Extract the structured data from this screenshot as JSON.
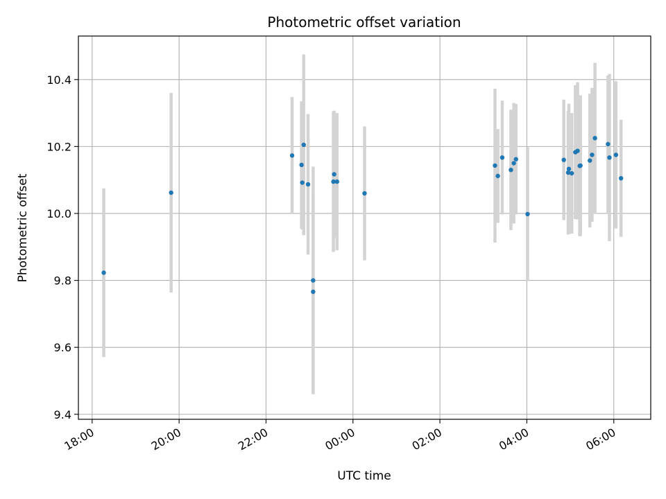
{
  "chart_data": {
    "type": "scatter",
    "title": "Photometric offset variation",
    "xlabel": "UTC time",
    "ylabel": "Photometric offset",
    "xlim": [
      "17:41",
      "06:51"
    ],
    "ylim": [
      9.385,
      10.53
    ],
    "xticks": [
      "18:00",
      "20:00",
      "22:00",
      "00:00",
      "02:00",
      "04:00",
      "06:00"
    ],
    "xtick_times": [
      "18:00",
      "20:00",
      "22:00",
      "24:00",
      "26:00",
      "28:00",
      "30:00"
    ],
    "yticks": [
      9.4,
      9.6,
      9.8,
      10.0,
      10.2,
      10.4
    ],
    "ytick_labels": [
      "9.4",
      "9.6",
      "9.8",
      "10.0",
      "10.2",
      "10.4"
    ],
    "grid": true,
    "colors": {
      "point": "#1f77b4",
      "errorbar": "#d3d3d3",
      "grid": "#b0b0b0"
    },
    "points": [
      {
        "x": "18:16",
        "y": 9.823,
        "err": 0.252
      },
      {
        "x": "19:49",
        "y": 10.062,
        "err": 0.298
      },
      {
        "x": "22:36",
        "y": 10.173,
        "err": 0.175
      },
      {
        "x": "22:49",
        "y": 10.145,
        "err": 0.19
      },
      {
        "x": "22:50",
        "y": 10.092,
        "err": 0.14
      },
      {
        "x": "22:52",
        "y": 10.205,
        "err": 0.27
      },
      {
        "x": "22:58",
        "y": 10.087,
        "err": 0.21
      },
      {
        "x": "23:05",
        "y": 9.8,
        "err": 0.34
      },
      {
        "x": "23:05",
        "y": 9.766,
        "err": 0.3
      },
      {
        "x": "23:33",
        "y": 10.095,
        "err": 0.21
      },
      {
        "x": "23:34",
        "y": 10.117,
        "err": 0.19
      },
      {
        "x": "23:38",
        "y": 10.095,
        "err": 0.205
      },
      {
        "x": "00:16",
        "y": 10.06,
        "err": 0.2
      },
      {
        "x": "03:16",
        "y": 10.143,
        "err": 0.23
      },
      {
        "x": "03:20",
        "y": 10.112,
        "err": 0.14
      },
      {
        "x": "03:26",
        "y": 10.167,
        "err": 0.17
      },
      {
        "x": "03:38",
        "y": 10.13,
        "err": 0.18
      },
      {
        "x": "03:42",
        "y": 10.15,
        "err": 0.18
      },
      {
        "x": "03:45",
        "y": 10.162,
        "err": 0.165
      },
      {
        "x": "04:01",
        "y": 9.998,
        "err": 0.2
      },
      {
        "x": "04:51",
        "y": 10.16,
        "err": 0.18
      },
      {
        "x": "04:57",
        "y": 10.122,
        "err": 0.185
      },
      {
        "x": "04:58",
        "y": 10.133,
        "err": 0.195
      },
      {
        "x": "05:02",
        "y": 10.12,
        "err": 0.18
      },
      {
        "x": "05:07",
        "y": 10.183,
        "err": 0.2
      },
      {
        "x": "05:10",
        "y": 10.187,
        "err": 0.205
      },
      {
        "x": "05:13",
        "y": 10.142,
        "err": 0.21
      },
      {
        "x": "05:14",
        "y": 10.143,
        "err": 0.21
      },
      {
        "x": "05:27",
        "y": 10.158,
        "err": 0.2
      },
      {
        "x": "05:30",
        "y": 10.175,
        "err": 0.2
      },
      {
        "x": "05:34",
        "y": 10.225,
        "err": 0.225
      },
      {
        "x": "05:52",
        "y": 10.207,
        "err": 0.205
      },
      {
        "x": "05:54",
        "y": 10.167,
        "err": 0.25
      },
      {
        "x": "06:03",
        "y": 10.175,
        "err": 0.22
      },
      {
        "x": "06:10",
        "y": 10.105,
        "err": 0.175
      }
    ]
  }
}
